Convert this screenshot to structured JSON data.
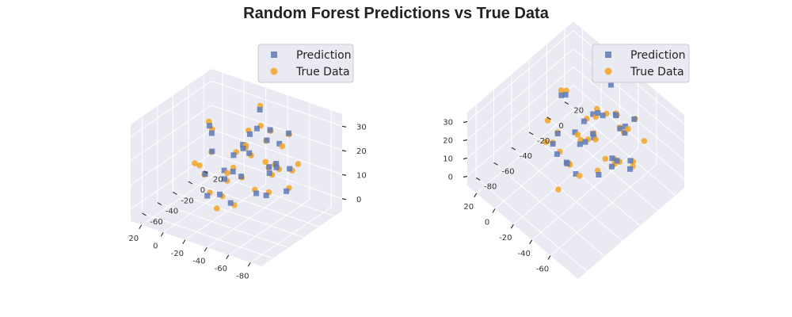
{
  "figure": {
    "title": "Random Forest Predictions vs True Data"
  },
  "colors": {
    "prediction": "#5d7ab7",
    "true_data": "#f5a623",
    "pane": "#eaeaf2",
    "grid": "#ffffff",
    "legend_bg": "#eaeaf2",
    "legend_border": "#cccccc"
  },
  "chart_data": [
    {
      "type": "scatter",
      "projection": "3d",
      "title": "",
      "legend": {
        "placement": "top-right",
        "entries": [
          {
            "label": "Prediction",
            "marker": "square"
          },
          {
            "label": "True Data",
            "marker": "circle"
          }
        ]
      },
      "grid": true,
      "xlim": [
        -90,
        30
      ],
      "ylim": [
        -75,
        30
      ],
      "zlim": [
        -5,
        35
      ],
      "x_ticks": [
        "-80",
        "-60",
        "-40",
        "-20",
        "0",
        "20"
      ],
      "y_ticks": [
        "-60",
        "-40",
        "-20",
        "0",
        "20"
      ],
      "z_ticks": [
        "0",
        "10",
        "20",
        "30"
      ],
      "xlabel": "",
      "ylabel": "",
      "zlabel": "",
      "series": [
        {
          "name": "Prediction",
          "marker": "square",
          "points": [
            [
              -40,
              -10,
              30
            ],
            [
              -45,
              0,
              28
            ],
            [
              -30,
              -5,
              25
            ],
            [
              -50,
              5,
              22
            ],
            [
              -35,
              10,
              20
            ],
            [
              -20,
              0,
              18
            ],
            [
              -55,
              -15,
              15
            ],
            [
              -25,
              -20,
              12
            ],
            [
              -40,
              15,
              10
            ],
            [
              -10,
              -10,
              8
            ],
            [
              -60,
              0,
              5
            ],
            [
              -15,
              5,
              3
            ],
            [
              -30,
              -30,
              2
            ],
            [
              -5,
              -25,
              0
            ],
            [
              -45,
              -35,
              28
            ],
            [
              -20,
              -40,
              24
            ],
            [
              -65,
              -20,
              20
            ],
            [
              -35,
              -45,
              16
            ],
            [
              -10,
              -35,
              12
            ],
            [
              -50,
              -25,
              8
            ],
            [
              0,
              -15,
              26
            ],
            [
              -25,
              15,
              30
            ],
            [
              -55,
              10,
              26
            ],
            [
              -40,
              -20,
              22
            ],
            [
              -15,
              -5,
              14
            ],
            [
              -30,
              20,
              6
            ],
            [
              -70,
              -10,
              18
            ],
            [
              -20,
              -30,
              4
            ],
            [
              5,
              -5,
              20
            ],
            [
              -45,
              -5,
              2
            ]
          ]
        },
        {
          "name": "True Data",
          "marker": "circle",
          "points": [
            [
              -42,
              -8,
              31
            ],
            [
              -44,
              2,
              27
            ],
            [
              -28,
              -4,
              26
            ],
            [
              -52,
              6,
              21
            ],
            [
              -33,
              12,
              19
            ],
            [
              -22,
              1,
              17
            ],
            [
              -56,
              -13,
              14
            ],
            [
              -24,
              -18,
              13
            ],
            [
              -38,
              16,
              9
            ],
            [
              -12,
              -9,
              7
            ],
            [
              -61,
              2,
              6
            ],
            [
              -14,
              7,
              2
            ],
            [
              -32,
              -28,
              1
            ],
            [
              -6,
              -23,
              1
            ],
            [
              -46,
              -33,
              29
            ],
            [
              -18,
              -38,
              23
            ],
            [
              -66,
              -18,
              19
            ],
            [
              -36,
              -43,
              15
            ],
            [
              -8,
              -33,
              11
            ],
            [
              -48,
              -24,
              9
            ],
            [
              2,
              -13,
              27
            ],
            [
              -24,
              17,
              31
            ],
            [
              -54,
              12,
              25
            ],
            [
              -41,
              -19,
              21
            ],
            [
              -16,
              -3,
              15
            ],
            [
              -28,
              22,
              5
            ],
            [
              -71,
              -8,
              17
            ],
            [
              -21,
              -28,
              3
            ],
            [
              6,
              -3,
              21
            ],
            [
              -46,
              -3,
              3
            ],
            [
              -58,
              18,
              12
            ],
            [
              -12,
              -45,
              18
            ],
            [
              -35,
              -55,
              6
            ],
            [
              10,
              -20,
              10
            ],
            [
              -62,
              -30,
              24
            ]
          ]
        }
      ]
    },
    {
      "type": "scatter",
      "projection": "3d",
      "title": "",
      "legend": {
        "placement": "top-right",
        "entries": [
          {
            "label": "Prediction",
            "marker": "square"
          },
          {
            "label": "True Data",
            "marker": "circle"
          }
        ]
      },
      "grid": true,
      "xlim": [
        -90,
        30
      ],
      "ylim": [
        -90,
        30
      ],
      "zlim": [
        -5,
        35
      ],
      "x_ticks": [
        "-60",
        "-40",
        "-20",
        "0",
        "20"
      ],
      "y_ticks": [
        "-80",
        "-60",
        "-40",
        "-20",
        "0",
        "20"
      ],
      "z_ticks": [
        "0",
        "10",
        "20",
        "30"
      ],
      "xlabel": "",
      "ylabel": "",
      "zlabel": "",
      "series": [
        {
          "name": "Prediction",
          "marker": "square",
          "points": [
            [
              -40,
              -10,
              30
            ],
            [
              -45,
              0,
              28
            ],
            [
              -30,
              -5,
              25
            ],
            [
              -50,
              5,
              22
            ],
            [
              -35,
              10,
              20
            ],
            [
              -20,
              0,
              18
            ],
            [
              -55,
              -15,
              15
            ],
            [
              -25,
              -20,
              12
            ],
            [
              -40,
              15,
              10
            ],
            [
              -10,
              -10,
              8
            ],
            [
              -60,
              0,
              5
            ],
            [
              -15,
              5,
              3
            ],
            [
              -30,
              -30,
              2
            ],
            [
              -5,
              -25,
              0
            ],
            [
              -45,
              -35,
              28
            ],
            [
              -20,
              -40,
              24
            ],
            [
              -65,
              -20,
              20
            ],
            [
              -35,
              -45,
              16
            ],
            [
              -10,
              -35,
              12
            ],
            [
              -50,
              -25,
              8
            ],
            [
              0,
              -15,
              26
            ],
            [
              -25,
              15,
              30
            ],
            [
              -55,
              10,
              26
            ],
            [
              -40,
              -20,
              22
            ],
            [
              -15,
              -5,
              14
            ],
            [
              -30,
              20,
              6
            ],
            [
              -70,
              -10,
              18
            ],
            [
              -20,
              -30,
              4
            ],
            [
              5,
              -5,
              20
            ],
            [
              -45,
              -5,
              2
            ]
          ]
        },
        {
          "name": "True Data",
          "marker": "circle",
          "points": [
            [
              -42,
              -8,
              31
            ],
            [
              -44,
              2,
              27
            ],
            [
              -28,
              -4,
              26
            ],
            [
              -52,
              6,
              21
            ],
            [
              -33,
              12,
              19
            ],
            [
              -22,
              1,
              17
            ],
            [
              -56,
              -13,
              14
            ],
            [
              -24,
              -18,
              13
            ],
            [
              -38,
              16,
              9
            ],
            [
              -12,
              -9,
              7
            ],
            [
              -61,
              2,
              6
            ],
            [
              -14,
              7,
              2
            ],
            [
              -32,
              -28,
              1
            ],
            [
              -6,
              -23,
              1
            ],
            [
              -46,
              -33,
              29
            ],
            [
              -18,
              -38,
              23
            ],
            [
              -66,
              -18,
              19
            ],
            [
              -36,
              -43,
              15
            ],
            [
              -8,
              -33,
              11
            ],
            [
              -48,
              -24,
              9
            ],
            [
              2,
              -13,
              27
            ],
            [
              -24,
              17,
              31
            ],
            [
              -54,
              12,
              25
            ],
            [
              -41,
              -19,
              21
            ],
            [
              -16,
              -3,
              15
            ],
            [
              -28,
              22,
              5
            ],
            [
              -71,
              -8,
              17
            ],
            [
              -21,
              -28,
              3
            ],
            [
              6,
              -3,
              21
            ],
            [
              -46,
              -3,
              3
            ],
            [
              -58,
              18,
              12
            ],
            [
              -12,
              -45,
              18
            ],
            [
              -35,
              -55,
              6
            ],
            [
              10,
              -20,
              10
            ],
            [
              -62,
              -30,
              24
            ]
          ]
        }
      ]
    }
  ]
}
